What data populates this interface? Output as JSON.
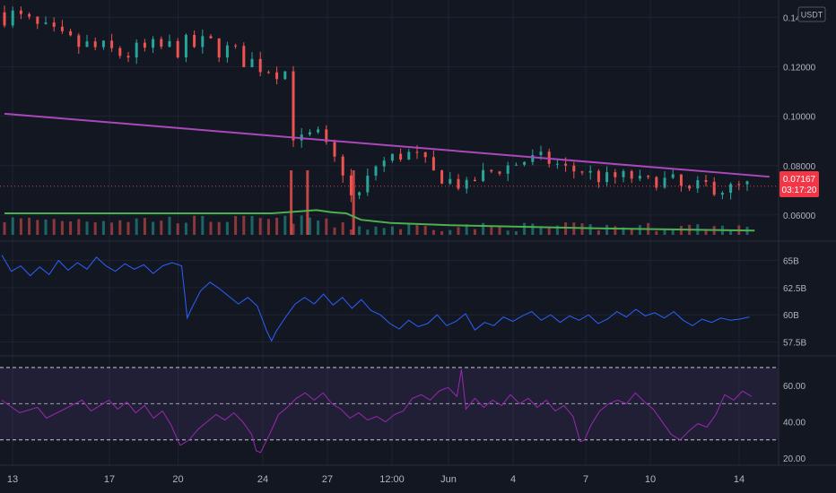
{
  "currency": "USDT",
  "colors": {
    "background": "#131722",
    "up": "#26a69a",
    "down": "#ef5350",
    "trendline": "#ab47bc",
    "volume_ma": "#4caf50",
    "obv": "#2962ff",
    "rsi": "#9c27b0",
    "rsi_band": "#7e57c2",
    "price_badge": "#f23645"
  },
  "price_badge": {
    "value": "0.07167",
    "countdown": "03:17:20"
  },
  "chart_data": [
    {
      "type": "candlestick",
      "pane": "price",
      "yticks": [
        "0.14000",
        "0.12000",
        "0.10000",
        "0.08000",
        "0.06000"
      ],
      "ylim": [
        0.052,
        0.147
      ],
      "last_price": 0.07167,
      "close_path": [
        [
          0,
          0.142
        ],
        [
          4,
          0.13
        ],
        [
          8,
          0.125
        ],
        [
          10,
          0.127
        ],
        [
          14,
          0.129
        ],
        [
          17,
          0.121
        ],
        [
          19,
          0.118
        ],
        [
          19.3,
          0.1
        ],
        [
          19.6,
          0.085
        ],
        [
          20,
          0.09
        ],
        [
          21,
          0.093
        ],
        [
          22,
          0.084
        ],
        [
          23,
          0.076
        ],
        [
          23.5,
          0.063
        ],
        [
          24,
          0.07
        ],
        [
          25,
          0.08
        ],
        [
          26,
          0.083
        ],
        [
          27,
          0.085
        ],
        [
          28,
          0.083
        ],
        [
          29,
          0.076
        ],
        [
          30,
          0.074
        ],
        [
          31,
          0.071
        ],
        [
          32,
          0.076
        ],
        [
          33,
          0.078
        ],
        [
          34,
          0.08
        ],
        [
          35,
          0.082
        ],
        [
          36,
          0.083
        ],
        [
          37,
          0.081
        ],
        [
          38,
          0.078
        ],
        [
          39,
          0.078
        ],
        [
          40,
          0.075
        ],
        [
          41,
          0.075
        ],
        [
          42,
          0.076
        ],
        [
          43,
          0.073
        ],
        [
          44,
          0.074
        ],
        [
          45,
          0.074
        ],
        [
          46,
          0.069
        ],
        [
          47,
          0.073
        ],
        [
          48,
          0.07
        ],
        [
          49,
          0.071
        ],
        [
          50.5,
          0.0725
        ]
      ],
      "trendline": {
        "start": [
          0,
          0.101
        ],
        "end": [
          51.5,
          0.0755
        ]
      },
      "volume_ma_path": [
        [
          0,
          0.2
        ],
        [
          18,
          0.2
        ],
        [
          20,
          0.22
        ],
        [
          21,
          0.23
        ],
        [
          22,
          0.21
        ],
        [
          23,
          0.2
        ],
        [
          24,
          0.14
        ],
        [
          26,
          0.11
        ],
        [
          30,
          0.09
        ],
        [
          40,
          0.06
        ],
        [
          50.5,
          0.04
        ]
      ],
      "volume_spikes": [
        19.3,
        20.4,
        23.5
      ]
    },
    {
      "type": "line",
      "pane": "obv",
      "yticks": [
        "65B",
        "62.5B",
        "60B",
        "57.5B"
      ],
      "ylim": [
        56.8,
        66.2
      ],
      "series": [
        {
          "path": [
            [
              0,
              65.5
            ],
            [
              1,
              64.0
            ],
            [
              2,
              64.5
            ],
            [
              3,
              63.6
            ],
            [
              4,
              64.4
            ],
            [
              5,
              63.7
            ],
            [
              6,
              65.0
            ],
            [
              7,
              64.1
            ],
            [
              8,
              64.8
            ],
            [
              9,
              64.2
            ],
            [
              10,
              65.3
            ],
            [
              11,
              64.5
            ],
            [
              12,
              64.0
            ],
            [
              13,
              64.7
            ],
            [
              14,
              64.2
            ],
            [
              15,
              64.6
            ],
            [
              16,
              63.8
            ],
            [
              17,
              64.5
            ],
            [
              18,
              64.8
            ],
            [
              19,
              64.5
            ],
            [
              19.6,
              59.7
            ],
            [
              20,
              60.5
            ],
            [
              21,
              62.2
            ],
            [
              22,
              63.0
            ],
            [
              23,
              62.4
            ],
            [
              24,
              61.7
            ],
            [
              25,
              61.0
            ],
            [
              26,
              61.6
            ],
            [
              27,
              60.8
            ],
            [
              28,
              58.5
            ],
            [
              28.5,
              57.6
            ],
            [
              29,
              58.5
            ],
            [
              30,
              59.8
            ],
            [
              31,
              61.0
            ],
            [
              32,
              61.6
            ],
            [
              33,
              61.0
            ],
            [
              34,
              61.9
            ],
            [
              35,
              60.9
            ],
            [
              36,
              61.6
            ],
            [
              37,
              60.6
            ],
            [
              38,
              61.4
            ],
            [
              39,
              60.4
            ],
            [
              40,
              60.0
            ],
            [
              41,
              59.2
            ],
            [
              42,
              58.7
            ],
            [
              43,
              59.5
            ],
            [
              44,
              58.9
            ],
            [
              45,
              59.2
            ],
            [
              46,
              60.0
            ],
            [
              47,
              59.0
            ],
            [
              48,
              59.4
            ],
            [
              49,
              60.1
            ],
            [
              50,
              58.6
            ],
            [
              51,
              59.3
            ],
            [
              52,
              59.0
            ],
            [
              53,
              59.8
            ],
            [
              54,
              59.4
            ],
            [
              55,
              59.9
            ],
            [
              56,
              60.3
            ],
            [
              57,
              59.5
            ],
            [
              58,
              60.0
            ],
            [
              59,
              59.3
            ],
            [
              60,
              59.9
            ],
            [
              61,
              59.5
            ],
            [
              62,
              60.0
            ],
            [
              63,
              59.2
            ],
            [
              64,
              59.6
            ],
            [
              65,
              60.3
            ],
            [
              66,
              59.8
            ],
            [
              67,
              60.5
            ],
            [
              68,
              59.9
            ],
            [
              69,
              60.2
            ],
            [
              70,
              59.7
            ],
            [
              71,
              60.3
            ],
            [
              72,
              59.5
            ],
            [
              73,
              59.0
            ],
            [
              74,
              59.6
            ],
            [
              75,
              59.3
            ],
            [
              76,
              59.7
            ],
            [
              77,
              59.5
            ],
            [
              78,
              59.6
            ],
            [
              79,
              59.8
            ]
          ]
        }
      ]
    },
    {
      "type": "line",
      "pane": "rsi",
      "yticks": [
        "60.00",
        "40.00",
        "20.00"
      ],
      "ylim": [
        16.5,
        73
      ],
      "band": [
        30,
        70
      ],
      "midline": 50,
      "series": [
        {
          "path": [
            [
              0,
              52
            ],
            [
              2,
              45
            ],
            [
              4,
              48
            ],
            [
              5,
              42
            ],
            [
              7,
              47
            ],
            [
              9,
              52
            ],
            [
              10,
              46
            ],
            [
              12,
              52
            ],
            [
              13,
              47
            ],
            [
              14,
              51
            ],
            [
              15,
              45
            ],
            [
              16,
              49
            ],
            [
              17,
              42
            ],
            [
              18,
              46
            ],
            [
              19,
              38
            ],
            [
              19.6,
              31
            ],
            [
              20,
              27
            ],
            [
              21,
              30
            ],
            [
              22,
              36
            ],
            [
              23,
              40
            ],
            [
              24,
              44
            ],
            [
              25,
              41
            ],
            [
              26,
              45
            ],
            [
              27,
              40
            ],
            [
              28,
              33
            ],
            [
              28.5,
              24
            ],
            [
              29,
              23
            ],
            [
              30,
              33
            ],
            [
              31,
              44
            ],
            [
              32,
              48
            ],
            [
              33,
              53
            ],
            [
              34,
              56
            ],
            [
              35,
              52
            ],
            [
              36,
              56
            ],
            [
              37,
              50
            ],
            [
              38,
              47
            ],
            [
              39,
              42
            ],
            [
              40,
              45
            ],
            [
              41,
              41
            ],
            [
              42,
              43
            ],
            [
              43,
              40
            ],
            [
              44,
              44
            ],
            [
              45,
              46
            ],
            [
              46,
              53
            ],
            [
              47,
              55
            ],
            [
              48,
              52
            ],
            [
              49,
              57
            ],
            [
              50,
              59
            ],
            [
              51,
              54
            ],
            [
              51.5,
              69
            ],
            [
              52,
              47
            ],
            [
              53,
              53
            ],
            [
              54,
              48
            ],
            [
              55,
              52
            ],
            [
              56,
              49
            ],
            [
              57,
              55
            ],
            [
              58,
              50
            ],
            [
              59,
              53
            ],
            [
              60,
              48
            ],
            [
              61,
              52
            ],
            [
              62,
              46
            ],
            [
              63,
              49
            ],
            [
              64,
              43
            ],
            [
              64.8,
              29
            ],
            [
              65.3,
              30
            ],
            [
              66,
              38
            ],
            [
              67,
              46
            ],
            [
              68,
              50
            ],
            [
              69,
              52
            ],
            [
              70,
              50
            ],
            [
              71,
              56
            ],
            [
              72,
              51
            ],
            [
              73,
              47
            ],
            [
              74,
              40
            ],
            [
              75,
              33
            ],
            [
              76,
              30
            ],
            [
              77,
              35
            ],
            [
              78,
              39
            ],
            [
              79,
              37
            ],
            [
              80,
              44
            ],
            [
              81,
              55
            ],
            [
              82,
              52
            ],
            [
              83,
              57
            ],
            [
              84,
              54
            ]
          ]
        }
      ]
    }
  ],
  "x_axis": {
    "ticks": [
      "13",
      "17",
      "20",
      "24",
      "27",
      "12:00",
      "Jun",
      "4",
      "7",
      "10",
      "14"
    ]
  }
}
